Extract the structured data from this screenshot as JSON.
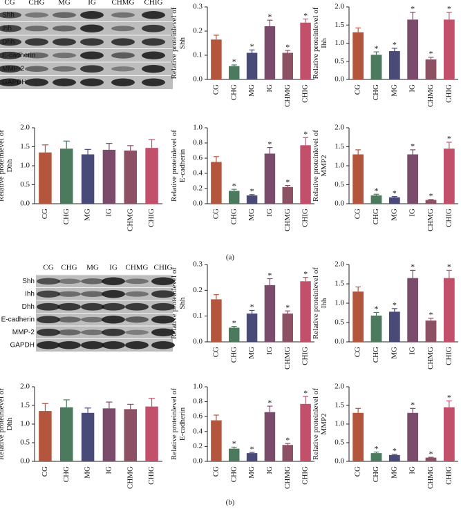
{
  "panel_labels": [
    "(a)",
    "(b)"
  ],
  "blots": [
    {
      "lanes": [
        "CG",
        "CHG",
        "MG",
        "IG",
        "CHMG",
        "CHIG"
      ],
      "proteins": [
        "Shh",
        "Ihh",
        "Dhh",
        "E-cadherin",
        "MMP-2",
        "GAPDH"
      ]
    },
    {
      "lanes": [
        "CG",
        "CHG",
        "MG",
        "IG",
        "CHMG",
        "CHIG"
      ],
      "proteins": [
        "Shh",
        "Ihh",
        "Dhh",
        "E-cadherin",
        "MMP-2",
        "GAPDH"
      ]
    }
  ],
  "chart_data": [
    {
      "type": "bar",
      "ylabel": "Relative proteinlevel of Shh",
      "categories": [
        "CG",
        "CHG",
        "MG",
        "IG",
        "CHMG",
        "CHIG"
      ],
      "values": [
        0.165,
        0.055,
        0.11,
        0.22,
        0.11,
        0.235
      ],
      "errors": [
        0.018,
        0.005,
        0.012,
        0.025,
        0.01,
        0.015
      ],
      "significance": [
        null,
        "*",
        "*",
        "*",
        "*",
        "*"
      ],
      "colors": [
        "#b4553d",
        "#4b7a5f",
        "#4a4a78",
        "#7a4b6b",
        "#8c5163",
        "#c2506b"
      ],
      "ylim": [
        0,
        0.3
      ],
      "yticks": [
        {
          "value": 0,
          "label": "0.0"
        },
        0.1,
        0.2,
        0.3
      ]
    },
    {
      "type": "bar",
      "ylabel": "Relative proteinlevel of Ihh",
      "categories": [
        "CG",
        "CHG",
        "MG",
        "IG",
        "CHMG",
        "CHIG"
      ],
      "values": [
        1.3,
        0.68,
        0.78,
        1.65,
        0.55,
        1.65
      ],
      "errors": [
        0.12,
        0.08,
        0.08,
        0.2,
        0.06,
        0.2
      ],
      "significance": [
        null,
        "*",
        "*",
        "*",
        "*",
        "*"
      ],
      "colors": [
        "#b4553d",
        "#4b7a5f",
        "#4a4a78",
        "#7a4b6b",
        "#8c5163",
        "#c2506b"
      ],
      "ylim": [
        0,
        2
      ],
      "yticks": [
        {
          "value": 0,
          "label": "0.0"
        },
        0.5,
        {
          "value": 1,
          "label": "1.0"
        },
        1.5,
        {
          "value": 2,
          "label": "2.0"
        }
      ]
    },
    {
      "type": "bar",
      "ylabel": "Relative proteinlevel of Dhh",
      "categories": [
        "CG",
        "CHG",
        "MG",
        "IG",
        "CHMG",
        "CHIG"
      ],
      "values": [
        1.35,
        1.45,
        1.3,
        1.42,
        1.4,
        1.47
      ],
      "errors": [
        0.2,
        0.2,
        0.13,
        0.17,
        0.13,
        0.22
      ],
      "colors": [
        "#b4553d",
        "#4b7a5f",
        "#4a4a78",
        "#7a4b6b",
        "#8c5163",
        "#c2506b"
      ],
      "ylim": [
        0,
        2
      ],
      "yticks": [
        {
          "value": 0,
          "label": "0.0"
        },
        0.5,
        {
          "value": 1,
          "label": "1.0"
        },
        1.5,
        {
          "value": 2,
          "label": "2.0"
        }
      ]
    },
    {
      "type": "bar",
      "ylabel": "Relative proteinlevel of E-cadherin",
      "categories": [
        "CG",
        "CHG",
        "MG",
        "IG",
        "CHMG",
        "CHIG"
      ],
      "values": [
        0.55,
        0.17,
        0.11,
        0.66,
        0.22,
        0.77
      ],
      "errors": [
        0.07,
        0.02,
        0.01,
        0.08,
        0.02,
        0.1
      ],
      "significance": [
        null,
        "*",
        "*",
        "*",
        "*",
        "*"
      ],
      "colors": [
        "#b4553d",
        "#4b7a5f",
        "#4a4a78",
        "#7a4b6b",
        "#8c5163",
        "#c2506b"
      ],
      "ylim": [
        0,
        1
      ],
      "yticks": [
        {
          "value": 0,
          "label": "0.0"
        },
        0.2,
        0.4,
        0.6,
        0.8,
        {
          "value": 1,
          "label": "1.0"
        }
      ]
    },
    {
      "type": "bar",
      "ylabel": "Relative proteinlevel of MMP2",
      "categories": [
        "CG",
        "CHG",
        "MG",
        "IG",
        "CHMG",
        "CHIG"
      ],
      "values": [
        1.3,
        0.22,
        0.17,
        1.3,
        0.1,
        1.45
      ],
      "errors": [
        0.12,
        0.03,
        0.02,
        0.12,
        0.01,
        0.17
      ],
      "significance": [
        null,
        "*",
        "*",
        "*",
        "*",
        "*"
      ],
      "colors": [
        "#b4553d",
        "#4b7a5f",
        "#4a4a78",
        "#7a4b6b",
        "#8c5163",
        "#c2506b"
      ],
      "ylim": [
        0,
        2
      ],
      "yticks": [
        {
          "value": 0,
          "label": "0.0"
        },
        0.5,
        {
          "value": 1,
          "label": "1.0"
        },
        1.5,
        {
          "value": 2,
          "label": "2.0"
        }
      ]
    },
    {
      "type": "bar",
      "ylabel": "Relative proteinlevel of Shh",
      "categories": [
        "CG",
        "CHG",
        "MG",
        "IG",
        "CHMG",
        "CHIG"
      ],
      "values": [
        0.165,
        0.055,
        0.11,
        0.22,
        0.11,
        0.235
      ],
      "errors": [
        0.018,
        0.005,
        0.012,
        0.025,
        0.01,
        0.015
      ],
      "significance": [
        null,
        "*",
        "*",
        "*",
        "*",
        "*"
      ],
      "colors": [
        "#b4553d",
        "#4b7a5f",
        "#4a4a78",
        "#7a4b6b",
        "#8c5163",
        "#c2506b"
      ],
      "ylim": [
        0,
        0.3
      ],
      "yticks": [
        {
          "value": 0,
          "label": "0.0"
        },
        0.1,
        0.2,
        0.3
      ]
    },
    {
      "type": "bar",
      "ylabel": "Relative proteinlevel of Ihh",
      "categories": [
        "CG",
        "CHG",
        "MG",
        "IG",
        "CHMG",
        "CHIG"
      ],
      "values": [
        1.3,
        0.68,
        0.78,
        1.65,
        0.55,
        1.65
      ],
      "errors": [
        0.12,
        0.08,
        0.08,
        0.2,
        0.06,
        0.2
      ],
      "significance": [
        null,
        "*",
        "*",
        "*",
        "*",
        "*"
      ],
      "colors": [
        "#b4553d",
        "#4b7a5f",
        "#4a4a78",
        "#7a4b6b",
        "#8c5163",
        "#c2506b"
      ],
      "ylim": [
        0,
        2
      ],
      "yticks": [
        {
          "value": 0,
          "label": "0.0"
        },
        0.5,
        {
          "value": 1,
          "label": "1.0"
        },
        1.5,
        {
          "value": 2,
          "label": "2.0"
        }
      ]
    },
    {
      "type": "bar",
      "ylabel": "Relative proteinlevel of Dhh",
      "categories": [
        "CG",
        "CHG",
        "MG",
        "IG",
        "CHMG",
        "CHIG"
      ],
      "values": [
        1.35,
        1.45,
        1.3,
        1.42,
        1.4,
        1.47
      ],
      "errors": [
        0.2,
        0.2,
        0.13,
        0.17,
        0.13,
        0.22
      ],
      "colors": [
        "#b4553d",
        "#4b7a5f",
        "#4a4a78",
        "#7a4b6b",
        "#8c5163",
        "#c2506b"
      ],
      "ylim": [
        0,
        2
      ],
      "yticks": [
        {
          "value": 0,
          "label": "0.0"
        },
        0.5,
        {
          "value": 1,
          "label": "1.0"
        },
        1.5,
        {
          "value": 2,
          "label": "2.0"
        }
      ]
    },
    {
      "type": "bar",
      "ylabel": "Relative proteinlevel of E-cadherin",
      "categories": [
        "CG",
        "CHG",
        "MG",
        "IG",
        "CHMG",
        "CHIG"
      ],
      "values": [
        0.55,
        0.17,
        0.11,
        0.66,
        0.22,
        0.77
      ],
      "errors": [
        0.07,
        0.02,
        0.01,
        0.08,
        0.02,
        0.1
      ],
      "significance": [
        null,
        "*",
        "*",
        "*",
        "*",
        "*"
      ],
      "colors": [
        "#b4553d",
        "#4b7a5f",
        "#4a4a78",
        "#7a4b6b",
        "#8c5163",
        "#c2506b"
      ],
      "ylim": [
        0,
        1
      ],
      "yticks": [
        {
          "value": 0,
          "label": "0.0"
        },
        0.2,
        0.4,
        0.6,
        0.8,
        {
          "value": 1,
          "label": "1.0"
        }
      ]
    },
    {
      "type": "bar",
      "ylabel": "Relative proteinlevel of MMP2",
      "categories": [
        "CG",
        "CHG",
        "MG",
        "IG",
        "CHMG",
        "CHIG"
      ],
      "values": [
        1.3,
        0.22,
        0.17,
        1.3,
        0.1,
        1.45
      ],
      "errors": [
        0.12,
        0.03,
        0.02,
        0.12,
        0.01,
        0.17
      ],
      "significance": [
        null,
        "*",
        "*",
        "*",
        "*",
        "*"
      ],
      "colors": [
        "#b4553d",
        "#4b7a5f",
        "#4a4a78",
        "#7a4b6b",
        "#8c5163",
        "#c2506b"
      ],
      "ylim": [
        0,
        2
      ],
      "yticks": [
        {
          "value": 0,
          "label": "0.0"
        },
        0.5,
        {
          "value": 1,
          "label": "1.0"
        },
        1.5,
        {
          "value": 2,
          "label": "2.0"
        }
      ]
    }
  ]
}
